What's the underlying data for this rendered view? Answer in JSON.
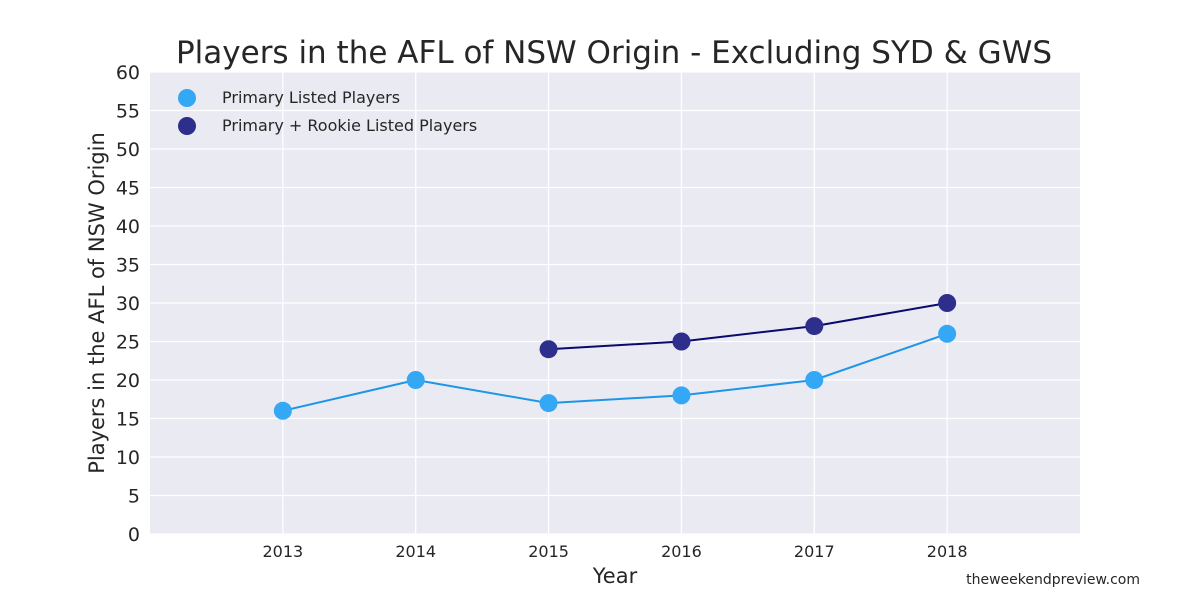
{
  "chart_data": {
    "type": "line",
    "title": "Players in the AFL of NSW Origin - Excluding SYD & GWS",
    "xlabel": "Year",
    "ylabel": "Players in the AFL of NSW Origin",
    "x_ticks": [
      "2013",
      "2014",
      "2015",
      "2016",
      "2017",
      "2018"
    ],
    "xlim": [
      2012,
      2019
    ],
    "ylim": [
      0,
      60
    ],
    "y_ticks": [
      0,
      5,
      10,
      15,
      20,
      25,
      30,
      35,
      40,
      45,
      50,
      55,
      60
    ],
    "grid": true,
    "legend_position": "top-left",
    "series": [
      {
        "name": "Primary Listed Players",
        "x": [
          2013,
          2014,
          2015,
          2016,
          2017,
          2018
        ],
        "values": [
          16,
          20,
          17,
          18,
          20,
          26
        ],
        "line_color": "#1e96e6",
        "marker_color": "#34a8f5"
      },
      {
        "name": "Primary + Rookie Listed Players",
        "x": [
          2015,
          2016,
          2017,
          2018
        ],
        "values": [
          24,
          25,
          27,
          30
        ],
        "line_color": "#0a0a6e",
        "marker_color": "#2e2e8c"
      }
    ]
  },
  "colors": {
    "plot_bg": "#eaeaf2",
    "grid": "#ffffff"
  },
  "credit": "theweekendpreview.com"
}
